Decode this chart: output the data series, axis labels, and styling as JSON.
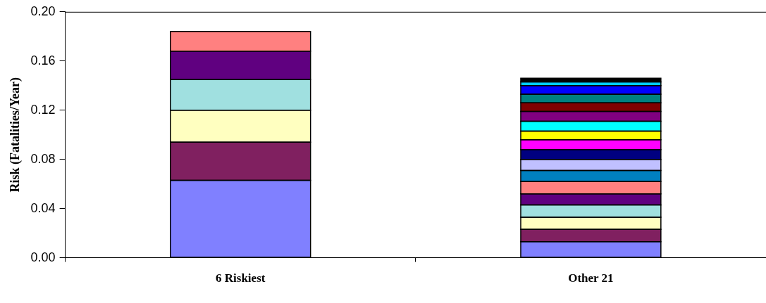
{
  "chart_data": {
    "type": "bar",
    "stacked": true,
    "ylabel": "Risk (Fatalities/Year)",
    "categories": [
      "6 Riskiest",
      "Other 21"
    ],
    "ylim": [
      0,
      0.2
    ],
    "yticks": [
      {
        "value": 0,
        "label": "0.00"
      },
      {
        "value": 0.04,
        "label": "0.04"
      },
      {
        "value": 0.08,
        "label": "0.08"
      },
      {
        "value": 0.12,
        "label": "0.12"
      },
      {
        "value": 0.16,
        "label": "0.16"
      },
      {
        "value": 0.2,
        "label": "0.20"
      }
    ],
    "grid": false,
    "legend": false,
    "series": [
      {
        "color": "#8080ff",
        "values": [
          0.063,
          0.013
        ]
      },
      {
        "color": "#802060",
        "values": [
          0.031,
          0.01
        ]
      },
      {
        "color": "#ffffc0",
        "values": [
          0.026,
          0.01
        ]
      },
      {
        "color": "#a0e0e0",
        "values": [
          0.025,
          0.01
        ]
      },
      {
        "color": "#600080",
        "values": [
          0.023,
          0.009
        ]
      },
      {
        "color": "#ff8080",
        "values": [
          0.016,
          0.01
        ]
      },
      {
        "color": "#0080c0",
        "values": [
          null,
          0.009
        ]
      },
      {
        "color": "#c0c0ff",
        "values": [
          null,
          0.009
        ]
      },
      {
        "color": "#000080",
        "values": [
          null,
          0.008
        ]
      },
      {
        "color": "#ff00ff",
        "values": [
          null,
          0.008
        ]
      },
      {
        "color": "#ffff00",
        "values": [
          null,
          0.007
        ]
      },
      {
        "color": "#00ffff",
        "values": [
          null,
          0.008
        ]
      },
      {
        "color": "#800080",
        "values": [
          null,
          0.008
        ]
      },
      {
        "color": "#800000",
        "values": [
          null,
          0.007
        ]
      },
      {
        "color": "#008080",
        "values": [
          null,
          0.007
        ]
      },
      {
        "color": "#0000ff",
        "values": [
          null,
          0.007
        ]
      },
      {
        "color": "#00ccff",
        "values": [
          null,
          0.003
        ]
      },
      {
        "color": "#000000",
        "values": [
          null,
          0.003
        ]
      }
    ]
  }
}
